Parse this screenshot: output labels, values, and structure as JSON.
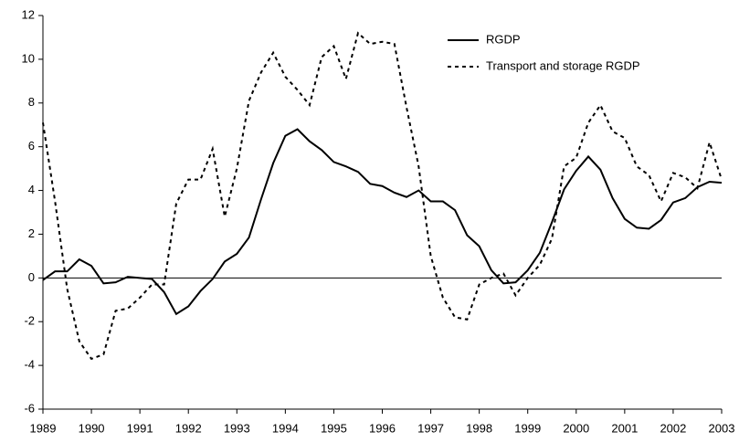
{
  "chart_data": {
    "type": "line",
    "x": [
      1989,
      1989.25,
      1989.5,
      1989.75,
      1990,
      1990.25,
      1990.5,
      1990.75,
      1991,
      1991.25,
      1991.5,
      1991.75,
      1992,
      1992.25,
      1992.5,
      1992.75,
      1993,
      1993.25,
      1993.5,
      1993.75,
      1994,
      1994.25,
      1994.5,
      1994.75,
      1995,
      1995.25,
      1995.5,
      1995.75,
      1996,
      1996.25,
      1996.5,
      1996.75,
      1997,
      1997.25,
      1997.5,
      1997.75,
      1998,
      1998.25,
      1998.5,
      1998.75,
      1999,
      1999.25,
      1999.5,
      1999.75,
      2000,
      2000.25,
      2000.5,
      2000.75,
      2001,
      2001.25,
      2001.5,
      2001.75,
      2002,
      2002.25,
      2002.5,
      2002.75,
      2003
    ],
    "series": [
      {
        "name": "RGDP",
        "color": "#000000",
        "line_style": "solid",
        "values": [
          -0.1,
          0.3,
          0.3,
          0.85,
          0.55,
          -0.25,
          -0.2,
          0.05,
          0.0,
          -0.05,
          -0.65,
          -1.65,
          -1.3,
          -0.6,
          -0.05,
          0.75,
          1.1,
          1.85,
          3.6,
          5.25,
          6.5,
          6.8,
          6.25,
          5.85,
          5.3,
          5.1,
          4.85,
          4.3,
          4.2,
          3.9,
          3.7,
          4.0,
          3.5,
          3.5,
          3.1,
          1.95,
          1.45,
          0.35,
          -0.25,
          -0.2,
          0.35,
          1.15,
          2.55,
          4.05,
          4.9,
          5.55,
          4.95,
          3.65,
          2.7,
          2.3,
          2.25,
          2.65,
          3.45,
          3.65,
          4.15,
          4.4,
          4.35
        ]
      },
      {
        "name": "Transport and storage RGDP",
        "color": "#000000",
        "line_style": "dotted",
        "values": [
          7.1,
          3.5,
          -0.5,
          -2.9,
          -3.7,
          -3.5,
          -1.5,
          -1.4,
          -0.9,
          -0.3,
          -0.3,
          3.4,
          4.5,
          4.5,
          5.9,
          2.8,
          5.0,
          8.1,
          9.4,
          10.3,
          9.2,
          8.6,
          7.9,
          10.1,
          10.6,
          9.1,
          11.2,
          10.7,
          10.8,
          10.7,
          7.8,
          5.1,
          1.0,
          -0.9,
          -1.8,
          -1.9,
          -0.3,
          0.0,
          0.2,
          -0.8,
          0.0,
          0.6,
          1.8,
          5.1,
          5.5,
          7.1,
          7.9,
          6.7,
          6.4,
          5.1,
          4.7,
          3.5,
          4.8,
          4.6,
          4.1,
          6.2,
          4.5
        ]
      }
    ],
    "xlim": [
      1989,
      2003
    ],
    "xticks": [
      1989,
      1990,
      1991,
      1992,
      1993,
      1994,
      1995,
      1996,
      1997,
      1998,
      1999,
      2000,
      2001,
      2002,
      2003
    ],
    "ylim": [
      -6,
      12
    ],
    "yticks": [
      -6,
      -4,
      -2,
      0,
      2,
      4,
      6,
      8,
      10,
      12
    ],
    "hline": 0,
    "legend": "top-right"
  }
}
